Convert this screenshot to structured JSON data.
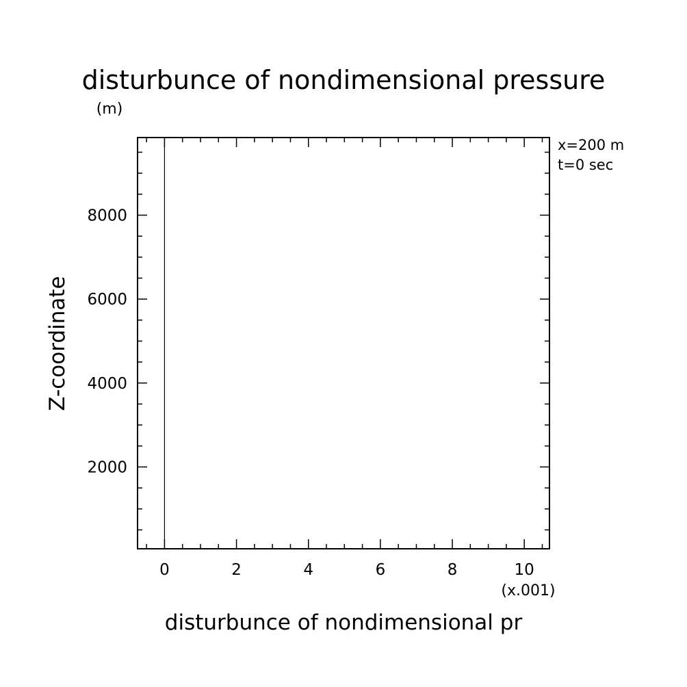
{
  "chart_data": {
    "type": "line",
    "title": "disturbunce of nondimensional pressure",
    "y_unit": "(m)",
    "xlabel": "disturbunce of nondimensional pr",
    "ylabel": "Z-coordinate",
    "x_multiplier": "(x.001)",
    "annotations": [
      "x=200 m",
      "t=0 sec"
    ],
    "xlim": [
      -0.75,
      10.7
    ],
    "ylim": [
      50,
      9850
    ],
    "x_ticks": [
      0,
      2,
      4,
      6,
      8,
      10
    ],
    "x_tick_labels": [
      "0",
      "2",
      "4",
      "6",
      "8",
      "10"
    ],
    "x_minor_step": 0.5,
    "y_ticks": [
      2000,
      4000,
      6000,
      8000
    ],
    "y_tick_labels": [
      "2000",
      "4000",
      "6000",
      "8000"
    ],
    "y_minor_step": 500,
    "grid": false,
    "series": [
      {
        "x": [
          0,
          0
        ],
        "y": [
          50,
          9850
        ]
      }
    ]
  }
}
